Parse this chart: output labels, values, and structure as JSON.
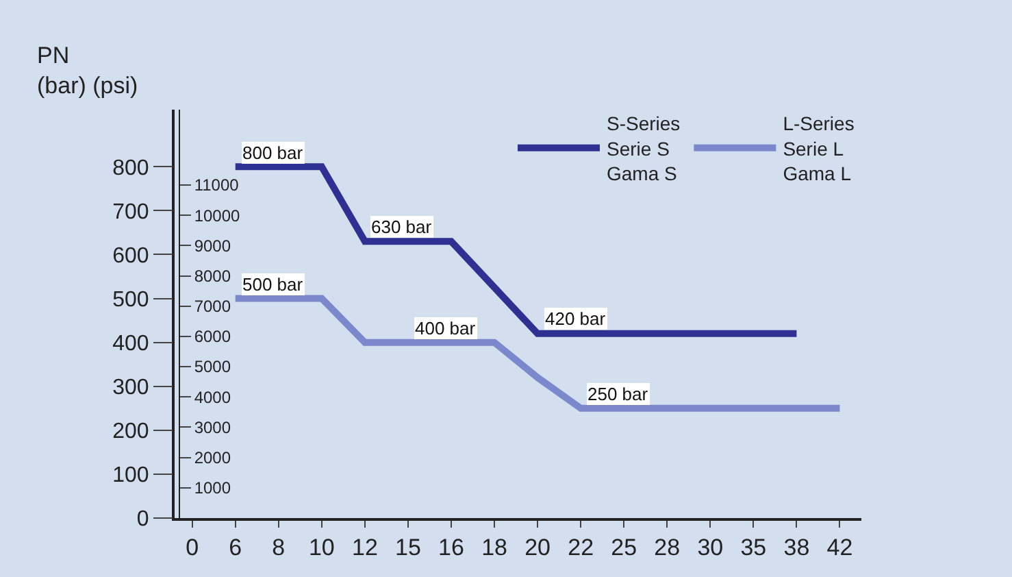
{
  "chart_data": {
    "type": "line",
    "ylabel": "PN\n(bar) (psi)",
    "categories": [
      "0",
      "6",
      "8",
      "10",
      "12",
      "15",
      "16",
      "18",
      "20",
      "22",
      "25",
      "28",
      "30",
      "35",
      "38",
      "42"
    ],
    "series": [
      {
        "name": "S-Series\nSerie S\nGama S",
        "color": "#2e3192",
        "values": [
          null,
          800,
          800,
          800,
          630,
          630,
          630,
          525,
          420,
          420,
          420,
          420,
          420,
          420,
          420,
          null
        ]
      },
      {
        "name": "L-Series\nSerie L\nGama L",
        "color": "#7b88cc",
        "values": [
          null,
          500,
          500,
          500,
          400,
          400,
          400,
          400,
          320,
          250,
          250,
          250,
          250,
          250,
          250,
          250
        ]
      }
    ],
    "ylim": [
      0,
      930
    ],
    "yticks": [
      0,
      100,
      200,
      300,
      400,
      500,
      600,
      700,
      800
    ],
    "y2lim": [
      0,
      13488
    ],
    "y2ticks": [
      1000,
      2000,
      3000,
      4000,
      5000,
      6000,
      7000,
      8000,
      9000,
      10000,
      11000
    ],
    "annotations": [
      {
        "text": "800 bar",
        "x": "6",
        "y": 800
      },
      {
        "text": "630 bar",
        "x": "12",
        "y": 630
      },
      {
        "text": "420 bar",
        "x": "20",
        "y": 420
      },
      {
        "text": "500 bar",
        "x": "6",
        "y": 500
      },
      {
        "text": "400 bar",
        "x": "15",
        "y": 400
      },
      {
        "text": "250 bar",
        "x": "22",
        "y": 250
      }
    ],
    "legend": "top right",
    "grid": false,
    "marker": "none",
    "line_style": "solid"
  }
}
